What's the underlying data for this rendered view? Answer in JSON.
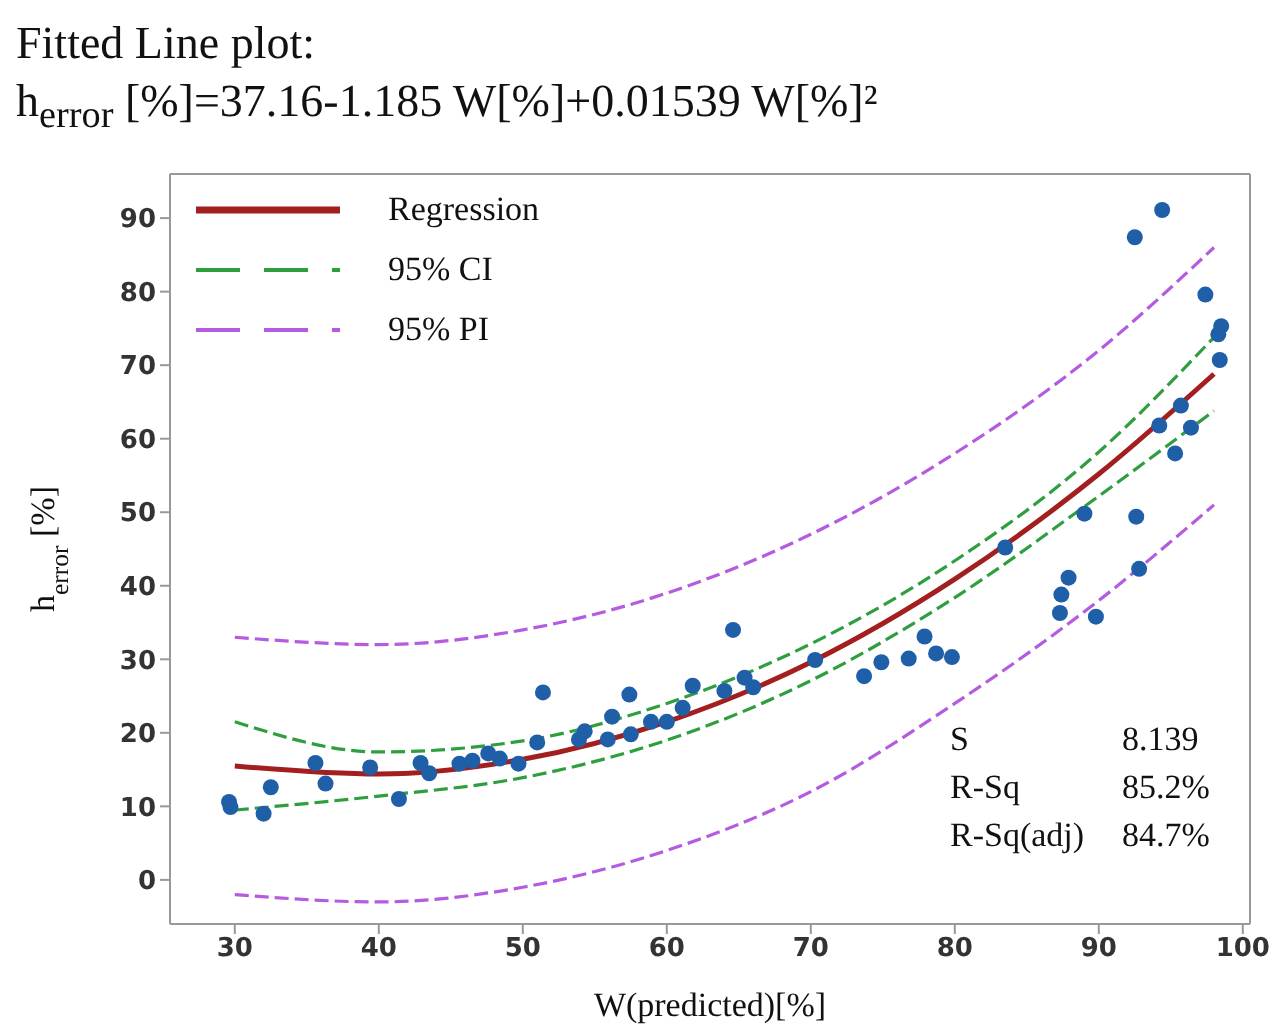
{
  "chart_data": {
    "type": "scatter",
    "title": "Fitted Line plot:",
    "subtitle": "h$_{error}$ [%]=37.16-1.185 W[%]+0.01539 W[%]²",
    "xlabel": "W(predicted)[%]",
    "ylabel": "h$_{error}$[%]",
    "xlim": [
      25.5,
      100.5
    ],
    "xticks": [
      30,
      40,
      50,
      60,
      70,
      80,
      90,
      100
    ],
    "ylim": [
      -6,
      96
    ],
    "yticks": [
      0,
      10,
      20,
      30,
      40,
      50,
      60,
      70,
      80,
      90
    ],
    "grid": false,
    "legend": "top left",
    "marker": "circle",
    "annotations": [
      "S",
      "8.139",
      "R-Sq",
      "85.2%",
      "R-Sq(adj)",
      "84.7%"
    ],
    "series": [
      {
        "color": "#1f5fa8",
        "x": [
          29.6,
          29.7,
          32.0,
          32.5,
          35.6,
          36.3,
          39.4,
          41.4,
          42.9,
          43.5,
          45.6,
          46.5,
          47.6,
          48.4,
          49.7,
          51.0,
          51.4,
          53.9,
          54.3,
          55.9,
          56.2,
          57.4,
          57.5,
          58.9,
          60.0,
          61.1,
          61.8,
          64.0,
          64.6,
          65.4,
          66.0,
          70.3,
          73.7,
          74.9,
          76.8,
          77.9,
          78.7,
          79.8,
          83.5,
          87.3,
          87.4,
          87.9,
          89.0,
          89.8,
          92.6,
          92.8,
          92.5,
          94.4,
          94.2,
          95.3,
          95.7,
          96.4,
          97.4,
          98.5,
          98.3,
          98.4
        ],
        "values": [
          10.6,
          9.9,
          9.0,
          12.6,
          15.9,
          13.1,
          15.3,
          11.0,
          15.9,
          14.5,
          15.8,
          16.2,
          17.2,
          16.5,
          15.8,
          18.7,
          25.5,
          19.1,
          20.2,
          19.1,
          22.2,
          25.2,
          19.8,
          21.5,
          21.5,
          23.4,
          26.4,
          25.7,
          34.0,
          27.5,
          26.2,
          29.9,
          27.7,
          29.6,
          30.1,
          33.1,
          30.8,
          30.3,
          45.2,
          36.3,
          38.8,
          41.1,
          49.8,
          35.8,
          49.4,
          42.3,
          87.4,
          91.1,
          61.8,
          58.0,
          64.5,
          61.5,
          79.6,
          75.3,
          74.2,
          70.7
        ]
      },
      {
        "name": "Regression",
        "type": "line",
        "color": "#a31f1f",
        "line_style": "solid",
        "marker": "none",
        "x": [
          30,
          40,
          50,
          60,
          70,
          80,
          90,
          98
        ],
        "values": [
          15.5,
          14.4,
          16.4,
          21.5,
          29.6,
          40.9,
          55.2,
          68.8
        ]
      },
      {
        "name": "95% CI",
        "type": "line",
        "color": "#2e9e3e",
        "line_style": "dashed",
        "marker": "none",
        "x": [
          30,
          40,
          50,
          60,
          70,
          80,
          90,
          98
        ],
        "values": [
          21.5,
          17.4,
          18.9,
          24,
          32.1,
          43.4,
          58.2,
          73.8
        ]
      },
      {
        "type": "line",
        "color": "#2e9e3e",
        "line_style": "dashed",
        "marker": "none",
        "x": [
          30,
          40,
          50,
          60,
          70,
          80,
          90,
          98
        ],
        "values": [
          9.5,
          11.4,
          13.9,
          19,
          27.1,
          38.4,
          52.2,
          63.8
        ]
      },
      {
        "name": "95% PI",
        "type": "line",
        "color": "#b45be0",
        "line_style": "dashed",
        "marker": "none",
        "x": [
          30,
          40,
          50,
          60,
          70,
          80,
          90,
          98
        ],
        "values": [
          33,
          32,
          34,
          39,
          47,
          58,
          72,
          86
        ]
      },
      {
        "type": "line",
        "color": "#b45be0",
        "line_style": "dashed",
        "marker": "none",
        "x": [
          30,
          40,
          50,
          60,
          70,
          80,
          90,
          98
        ],
        "values": [
          -2,
          -3,
          -1,
          4,
          12,
          24,
          38,
          51
        ]
      }
    ]
  }
}
